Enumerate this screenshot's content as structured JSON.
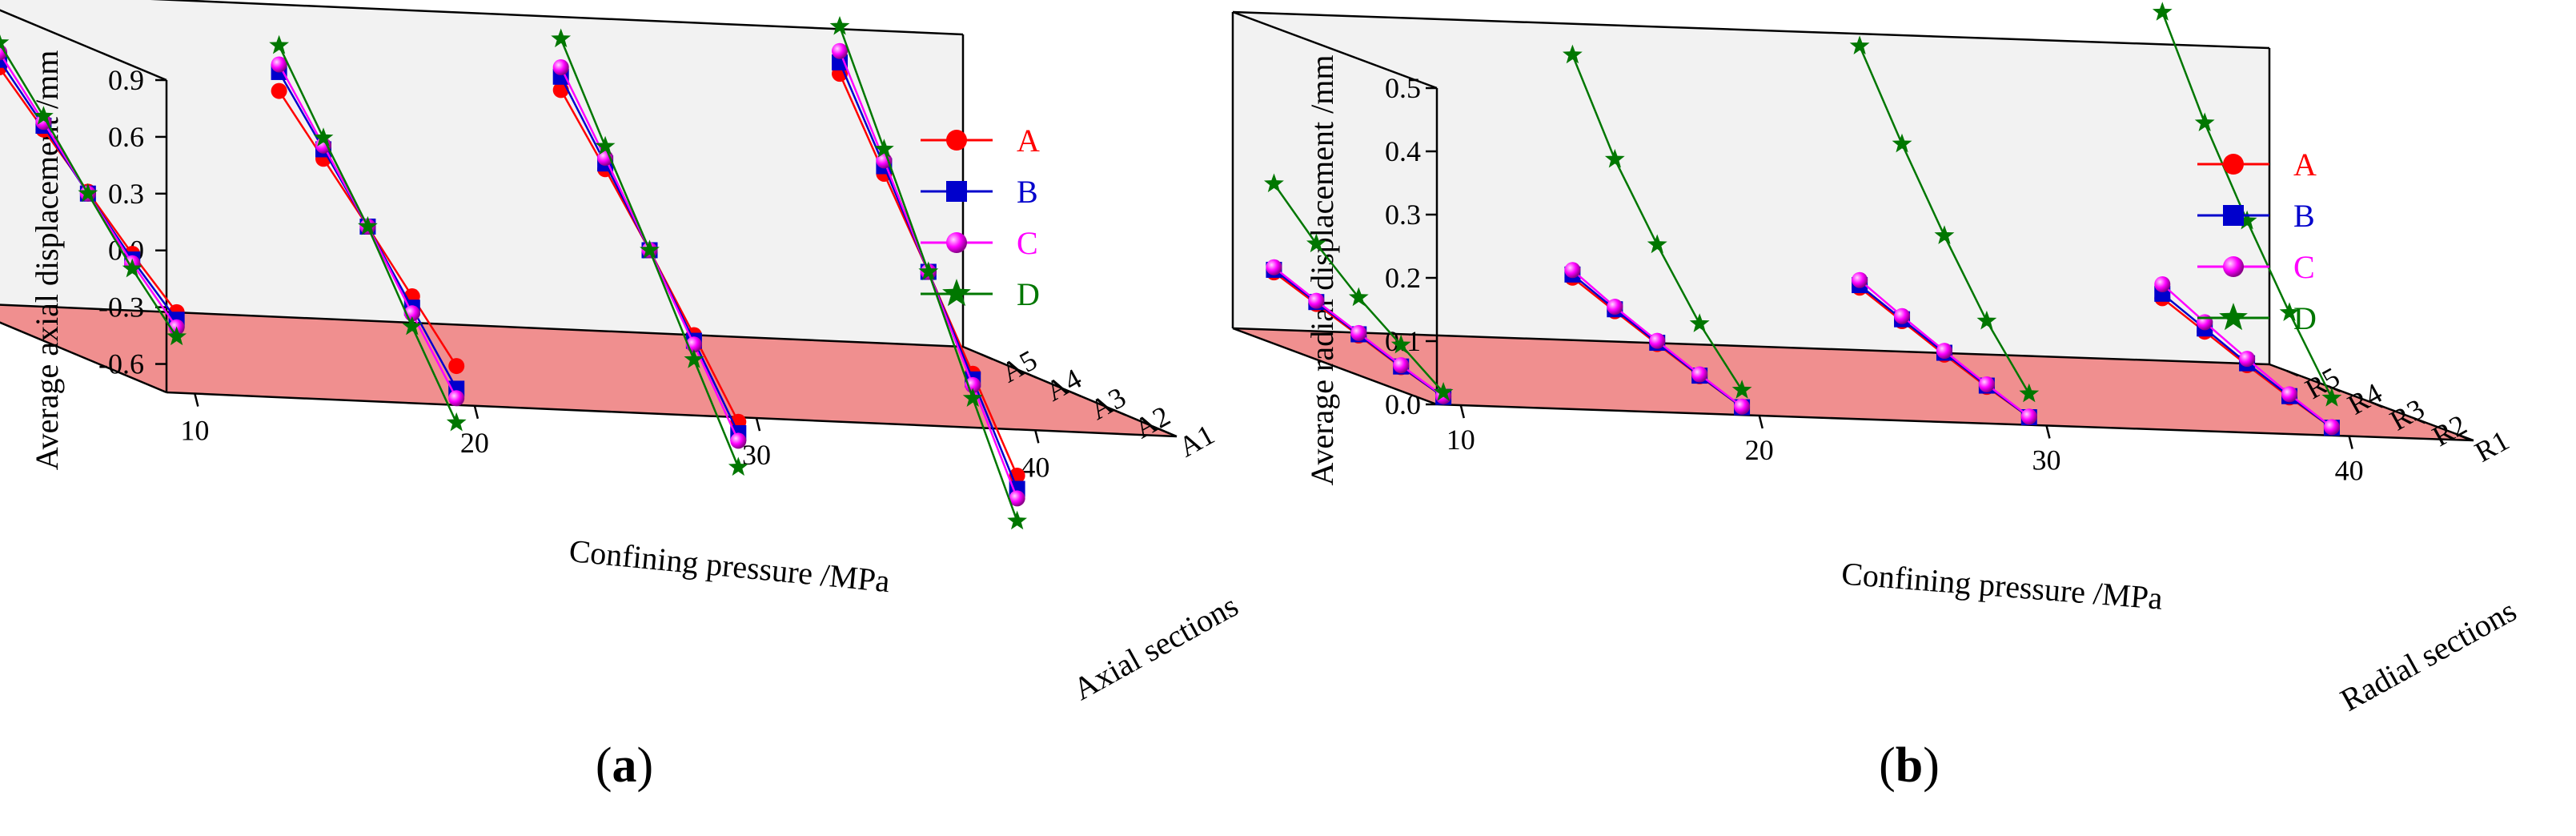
{
  "colors": {
    "A": "#ff0000",
    "B": "#0000cc",
    "C": "#ff00ff",
    "D": "#007700",
    "floor": "#f08f8f",
    "wall": "#f2f2f2"
  },
  "chart_data": [
    {
      "type": "line",
      "panel_label": "a",
      "panel_letter": "a",
      "title": "",
      "xlabel": "Confining pressure /MPa",
      "ylabel": "Axial sections",
      "zlabel": "Average axial displacement /mm",
      "x_ticks": [
        "10",
        "20",
        "30",
        "40"
      ],
      "y_ticks": [
        "A1",
        "A2",
        "A3",
        "A4",
        "A5"
      ],
      "z_ticks": [
        "0.9",
        "0.6",
        "0.3",
        "0.0",
        "-0.3",
        "-0.6"
      ],
      "z_tick_values": [
        0.9,
        0.6,
        0.3,
        0.0,
        -0.3,
        -0.6
      ],
      "zlim": [
        -0.75,
        0.9
      ],
      "legend": [
        "A",
        "B",
        "C",
        "D"
      ],
      "groups": [
        {
          "pressure": 10,
          "series": [
            {
              "name": "A",
              "values": [
                -0.36,
                -0.15,
                0.08,
                0.31,
                0.54
              ]
            },
            {
              "name": "B",
              "values": [
                -0.4,
                -0.18,
                0.07,
                0.33,
                0.58
              ]
            },
            {
              "name": "C",
              "values": [
                -0.44,
                -0.2,
                0.07,
                0.35,
                0.62
              ]
            },
            {
              "name": "D",
              "values": [
                -0.49,
                -0.23,
                0.07,
                0.38,
                0.67
              ]
            }
          ]
        },
        {
          "pressure": 20,
          "series": [
            {
              "name": "A",
              "values": [
                -0.58,
                -0.31,
                -0.04,
                0.22,
                0.48
              ]
            },
            {
              "name": "B",
              "values": [
                -0.7,
                -0.37,
                -0.04,
                0.27,
                0.58
              ]
            },
            {
              "name": "C",
              "values": [
                -0.75,
                -0.4,
                -0.04,
                0.29,
                0.62
              ]
            },
            {
              "name": "D",
              "values": [
                -0.88,
                -0.47,
                -0.04,
                0.33,
                0.72
              ]
            }
          ]
        },
        {
          "pressure": 30,
          "series": [
            {
              "name": "A",
              "values": [
                -0.81,
                -0.45,
                -0.1,
                0.23,
                0.55
              ]
            },
            {
              "name": "B",
              "values": [
                -0.87,
                -0.48,
                -0.1,
                0.26,
                0.62
              ]
            },
            {
              "name": "C",
              "values": [
                -0.91,
                -0.5,
                -0.1,
                0.29,
                0.67
              ]
            },
            {
              "name": "D",
              "values": [
                -1.05,
                -0.58,
                -0.1,
                0.35,
                0.82
              ]
            }
          ]
        },
        {
          "pressure": 40,
          "series": [
            {
              "name": "A",
              "values": [
                -1.03,
                -0.59,
                -0.15,
                0.27,
                0.7
              ]
            },
            {
              "name": "B",
              "values": [
                -1.1,
                -0.62,
                -0.15,
                0.31,
                0.76
              ]
            },
            {
              "name": "C",
              "values": [
                -1.15,
                -0.65,
                -0.15,
                0.34,
                0.82
              ]
            },
            {
              "name": "D",
              "values": [
                -1.27,
                -0.72,
                -0.15,
                0.4,
                0.95
              ]
            }
          ]
        }
      ]
    },
    {
      "type": "line",
      "panel_label": "b",
      "panel_letter": "b",
      "title": "",
      "xlabel": "Confining pressure /MPa",
      "ylabel": "Radial sections",
      "zlabel": "Average radial displacement /mm",
      "x_ticks": [
        "10",
        "20",
        "30",
        "40"
      ],
      "y_ticks": [
        "R1",
        "R2",
        "R3",
        "R4",
        "R5"
      ],
      "z_ticks": [
        "0.5",
        "0.4",
        "0.3",
        "0.2",
        "0.1",
        "0.0"
      ],
      "z_tick_values": [
        0.5,
        0.4,
        0.3,
        0.2,
        0.1,
        0.0
      ],
      "zlim": [
        0.0,
        0.5
      ],
      "legend": [
        "A",
        "B",
        "C",
        "D"
      ],
      "groups": [
        {
          "pressure": 10,
          "series": [
            {
              "name": "A",
              "values": [
                0.003,
                0.025,
                0.05,
                0.075,
                0.1
              ]
            },
            {
              "name": "B",
              "values": [
                0.003,
                0.026,
                0.052,
                0.078,
                0.104
              ]
            },
            {
              "name": "C",
              "values": [
                0.004,
                0.028,
                0.054,
                0.08,
                0.108
              ]
            },
            {
              "name": "D",
              "values": [
                0.01,
                0.06,
                0.11,
                0.17,
                0.24
              ]
            }
          ]
        },
        {
          "pressure": 20,
          "series": [
            {
              "name": "A",
              "values": [
                0.003,
                0.027,
                0.053,
                0.08,
                0.108
              ]
            },
            {
              "name": "B",
              "values": [
                0.003,
                0.028,
                0.055,
                0.083,
                0.113
              ]
            },
            {
              "name": "C",
              "values": [
                0.004,
                0.03,
                0.058,
                0.087,
                0.12
              ]
            },
            {
              "name": "D",
              "values": [
                0.03,
                0.11,
                0.21,
                0.32,
                0.46
              ]
            }
          ]
        },
        {
          "pressure": 30,
          "series": [
            {
              "name": "A",
              "values": [
                0.003,
                0.026,
                0.052,
                0.08,
                0.108
              ]
            },
            {
              "name": "B",
              "values": [
                0.003,
                0.028,
                0.055,
                0.083,
                0.112
              ]
            },
            {
              "name": "C",
              "values": [
                0.004,
                0.03,
                0.058,
                0.088,
                0.12
              ]
            },
            {
              "name": "D",
              "values": [
                0.04,
                0.13,
                0.24,
                0.36,
                0.49
              ]
            }
          ]
        },
        {
          "pressure": 40,
          "series": [
            {
              "name": "A",
              "values": [
                0.003,
                0.026,
                0.052,
                0.08,
                0.108
              ]
            },
            {
              "name": "B",
              "values": [
                0.003,
                0.028,
                0.055,
                0.085,
                0.115
              ]
            },
            {
              "name": "C",
              "values": [
                0.004,
                0.031,
                0.062,
                0.095,
                0.13
              ]
            },
            {
              "name": "D",
              "values": [
                0.05,
                0.16,
                0.28,
                0.41,
                0.56
              ]
            }
          ]
        }
      ]
    }
  ]
}
